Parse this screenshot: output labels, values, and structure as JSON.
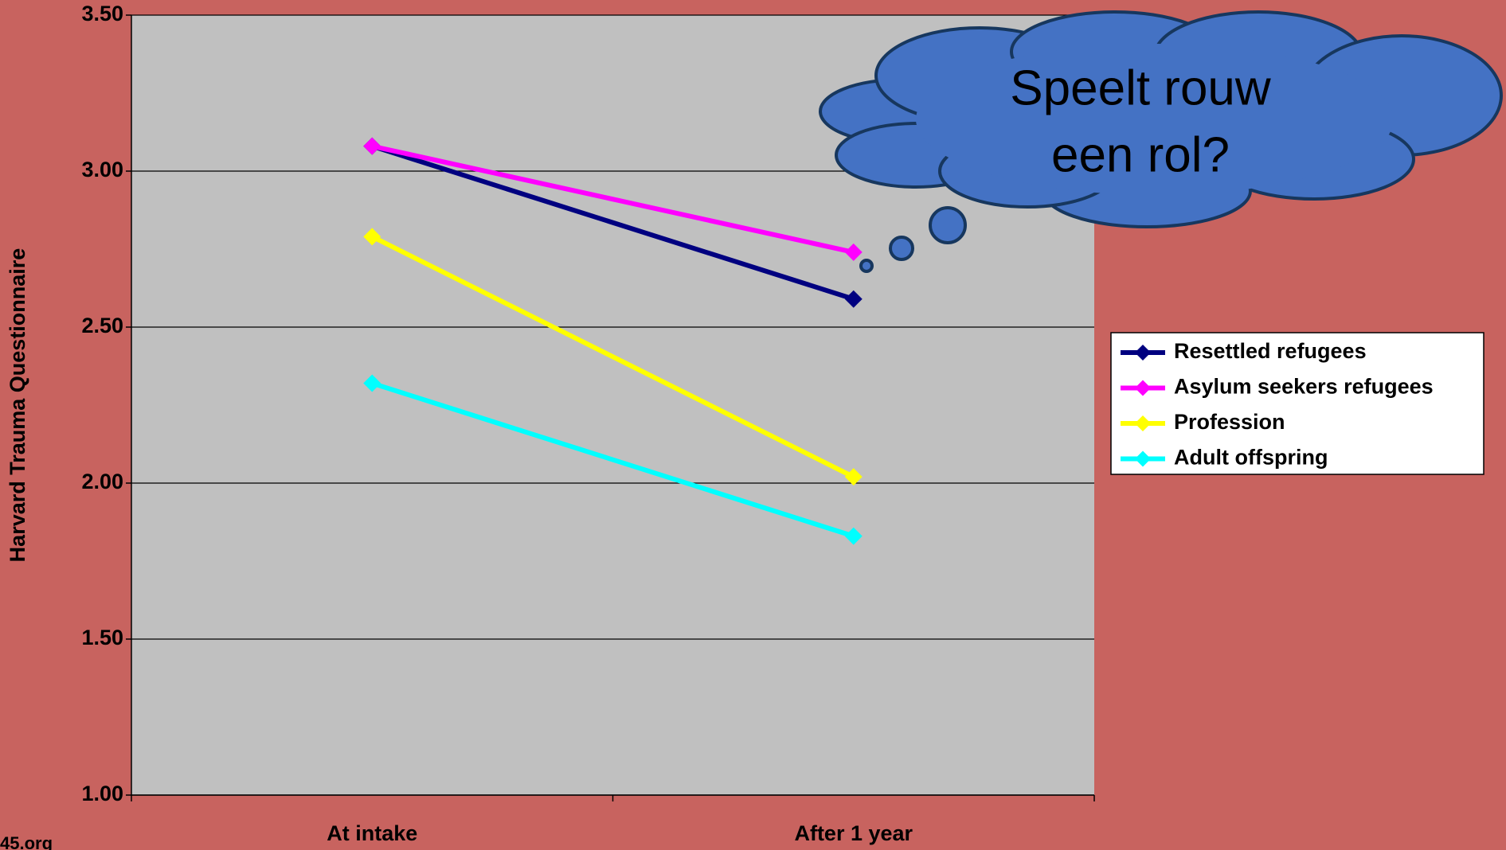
{
  "chart_data": {
    "type": "line",
    "y_label": "Harvard Trauma Questionnaire",
    "categories": [
      "At intake",
      "After 1 year"
    ],
    "series": [
      {
        "name": "Resettled refugees",
        "color": "#000080",
        "values": [
          3.08,
          2.59
        ]
      },
      {
        "name": "Asylum seekers refugees",
        "color": "#ff00ff",
        "values": [
          3.08,
          2.74
        ]
      },
      {
        "name": "Profession",
        "color": "#ffff00",
        "values": [
          2.79,
          2.02
        ]
      },
      {
        "name": "Adult offspring",
        "color": "#00ffff",
        "values": [
          2.32,
          1.83
        ]
      }
    ],
    "ylim": [
      1.0,
      3.5
    ],
    "yticks": [
      {
        "value": 1.0,
        "label": "1.00"
      },
      {
        "value": 1.5,
        "label": "1.50"
      },
      {
        "value": 2.0,
        "label": "2.00"
      },
      {
        "value": 2.5,
        "label": "2.50"
      },
      {
        "value": 3.0,
        "label": "3.00"
      },
      {
        "value": 3.5,
        "label": "3.50"
      }
    ],
    "grid": true,
    "legend": "right",
    "annotation_lines": [
      "Speelt rouw",
      "een rol?"
    ],
    "footer": "45.org"
  }
}
